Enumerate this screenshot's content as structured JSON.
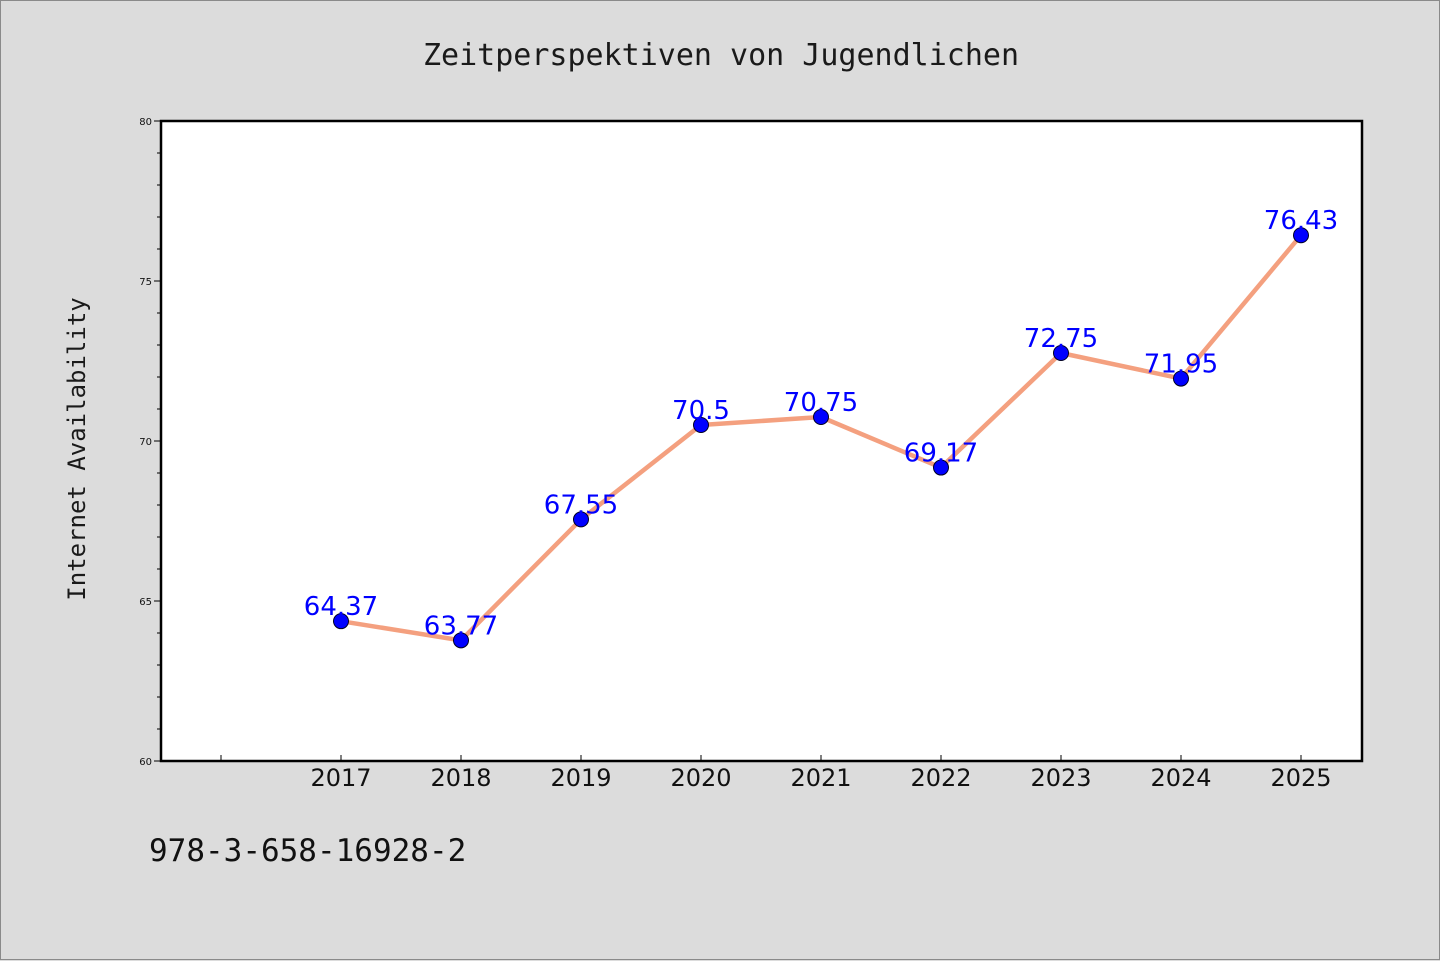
{
  "chart_data": {
    "type": "line",
    "title": "Zeitperspektiven von Jugendlichen",
    "xlabel": "",
    "ylabel": "Internet Availability",
    "categories": [
      "2017",
      "2018",
      "2019",
      "2020",
      "2021",
      "2022",
      "2023",
      "2024",
      "2025"
    ],
    "series": [
      {
        "values": [
          64.37,
          63.77,
          67.55,
          70.5,
          70.75,
          69.17,
          72.75,
          71.95,
          76.43
        ],
        "labels": [
          "64.37",
          "63.77",
          "67.55",
          "70.5",
          "70.75",
          "69.17",
          "72.75",
          "71.95",
          "76.43"
        ]
      }
    ],
    "ylim": [
      60,
      80
    ],
    "yticks": [
      60,
      65,
      70,
      75,
      80
    ],
    "grid": false,
    "line_color": "#f4a07f",
    "marker_color": "#0000ff",
    "label_color": "#0000ff"
  },
  "footer": {
    "code": "978-3-658-16928-2"
  }
}
